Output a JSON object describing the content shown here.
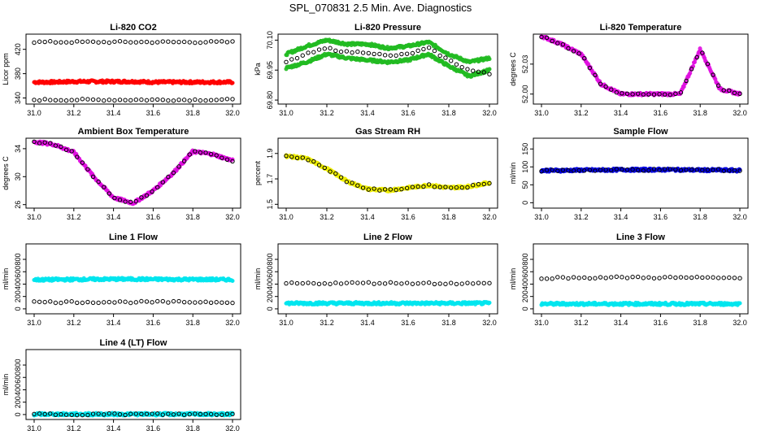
{
  "figure_title": "SPL_070831  2.5 Min. Ave. Diagnostics",
  "colors": {
    "red": "#ff0000",
    "green": "#22bb22",
    "magenta": "#e010e0",
    "yellow": "#eeee00",
    "blue": "#0000dd",
    "cyan": "#00e5ee",
    "black": "#000000"
  },
  "chart_data": [
    {
      "type": "scatter",
      "title": "Li-820 CO2",
      "ylabel": "Licor ppm",
      "xlim": [
        31.0,
        32.0
      ],
      "ylim": [
        330,
        445
      ],
      "xticks": [
        "31.0",
        "31.2",
        "31.4",
        "31.6",
        "31.8",
        "32.0"
      ],
      "yticks": [
        340,
        380,
        420
      ],
      "series": [
        {
          "name": "co2_avg",
          "color": "red",
          "style": "dense",
          "y": [
            366,
            366,
            367,
            367,
            367,
            367,
            366,
            366,
            366,
            366,
            366
          ]
        },
        {
          "name": "co2_max",
          "color": "black",
          "style": "open",
          "y": [
            432,
            432,
            432,
            432,
            432,
            432,
            432,
            432,
            432,
            432,
            432
          ]
        },
        {
          "name": "co2_min",
          "color": "black",
          "style": "open",
          "y": [
            337,
            337,
            337,
            337,
            337,
            337,
            337,
            337,
            337,
            337,
            337
          ]
        }
      ]
    },
    {
      "type": "scatter",
      "title": "Li-820 Pressure",
      "ylabel": "kPa",
      "xlim": [
        31.0,
        32.0
      ],
      "ylim": [
        69.78,
        70.13
      ],
      "xticks": [
        "31.0",
        "31.2",
        "31.4",
        "31.6",
        "31.8",
        "32.0"
      ],
      "yticks": [
        "69.80",
        "69.95",
        "70.10"
      ],
      "series": [
        {
          "name": "p_high",
          "color": "green",
          "style": "dense",
          "y": [
            70.03,
            70.07,
            70.1,
            70.08,
            70.08,
            70.06,
            70.07,
            70.09,
            70.03,
            69.99,
            70.01
          ]
        },
        {
          "name": "p_low",
          "color": "green",
          "style": "dense",
          "y": [
            69.96,
            69.99,
            70.03,
            70.01,
            70.0,
            69.99,
            70.0,
            70.03,
            69.97,
            69.92,
            69.95
          ]
        },
        {
          "name": "p_avg",
          "color": "black",
          "style": "open",
          "y": [
            69.99,
            70.03,
            70.06,
            70.04,
            70.04,
            70.02,
            70.03,
            70.06,
            70.0,
            69.95,
            69.93
          ]
        }
      ]
    },
    {
      "type": "scatter",
      "title": "Li-820 Temperature",
      "ylabel": "degrees C",
      "xlim": [
        31.0,
        32.0
      ],
      "ylim": [
        51.99,
        52.06
      ],
      "xticks": [
        "31.0",
        "31.2",
        "31.4",
        "31.6",
        "31.8",
        "32.0"
      ],
      "yticks": [
        "52.00",
        "52.03"
      ],
      "series": [
        {
          "name": "temp",
          "color": "magenta",
          "style": "dense",
          "y": [
            52.058,
            52.05,
            52.04,
            52.01,
            52.0,
            52.0,
            52.0,
            52.0,
            52.045,
            52.005,
            52.0
          ]
        },
        {
          "name": "temp_avg",
          "color": "black",
          "style": "open",
          "y": [
            52.058,
            52.05,
            52.04,
            52.01,
            52.0,
            52.0,
            52.0,
            52.0,
            52.045,
            52.005,
            52.0
          ]
        }
      ]
    },
    {
      "type": "scatter",
      "title": "Ambient Box Temperature",
      "ylabel": "degrees C",
      "xlim": [
        31.0,
        32.0
      ],
      "ylim": [
        25.5,
        35.5
      ],
      "xticks": [
        "31.0",
        "31.2",
        "31.4",
        "31.6",
        "31.8",
        "32.0"
      ],
      "yticks": [
        26,
        30,
        34
      ],
      "series": [
        {
          "name": "box_temp",
          "color": "magenta",
          "style": "dense",
          "y": [
            35,
            34.6,
            33.5,
            30.0,
            27.0,
            26.2,
            28.0,
            30.5,
            33.6,
            33.2,
            32.3
          ]
        },
        {
          "name": "box_temp_avg",
          "color": "black",
          "style": "open",
          "y": [
            35,
            34.6,
            33.5,
            30.0,
            27.0,
            26.2,
            28.0,
            30.5,
            33.6,
            33.2,
            32.3
          ]
        }
      ]
    },
    {
      "type": "scatter",
      "title": "Gas Stream RH",
      "ylabel": "percent",
      "xlim": [
        31.0,
        32.0
      ],
      "ylim": [
        1.47,
        2.02
      ],
      "xticks": [
        "31.0",
        "31.2",
        "31.4",
        "31.6",
        "31.8",
        "32.0"
      ],
      "yticks": [
        "1.5",
        "1.7",
        "1.9"
      ],
      "series": [
        {
          "name": "rh",
          "color": "yellow",
          "style": "dense",
          "y": [
            1.88,
            1.86,
            1.78,
            1.68,
            1.62,
            1.61,
            1.63,
            1.65,
            1.63,
            1.64,
            1.67
          ]
        },
        {
          "name": "rh_avg",
          "color": "black",
          "style": "open",
          "y": [
            1.88,
            1.86,
            1.78,
            1.68,
            1.62,
            1.61,
            1.63,
            1.65,
            1.63,
            1.64,
            1.67
          ]
        }
      ]
    },
    {
      "type": "scatter",
      "title": "Sample Flow",
      "ylabel": "ml/min",
      "xlim": [
        31.0,
        32.0
      ],
      "ylim": [
        -15,
        180
      ],
      "xticks": [
        "31.0",
        "31.2",
        "31.4",
        "31.6",
        "31.8",
        "32.0"
      ],
      "yticks": [
        0,
        50,
        100,
        150
      ],
      "series": [
        {
          "name": "flow",
          "color": "blue",
          "style": "dense",
          "y": [
            90,
            90,
            91,
            91,
            92,
            92,
            92,
            92,
            91,
            91,
            90
          ]
        },
        {
          "name": "flow_avg",
          "color": "black",
          "style": "open",
          "y": [
            90,
            90,
            91,
            91,
            92,
            92,
            92,
            92,
            91,
            91,
            90
          ]
        }
      ]
    },
    {
      "type": "scatter",
      "title": "Line 1 Flow",
      "ylabel": "ml/min",
      "xlim": [
        31.0,
        32.0
      ],
      "ylim": [
        -80,
        1050
      ],
      "xticks": [
        "31.0",
        "31.2",
        "31.4",
        "31.6",
        "31.8",
        "32.0"
      ],
      "yticks": [
        0,
        200,
        400,
        600,
        800
      ],
      "series": [
        {
          "name": "line_active",
          "color": "cyan",
          "style": "dense",
          "y": [
            470,
            472,
            475,
            478,
            480,
            480,
            478,
            476,
            475,
            474,
            472
          ]
        },
        {
          "name": "line_other",
          "color": "black",
          "style": "open",
          "y": [
            110,
            110,
            110,
            110,
            110,
            110,
            110,
            110,
            110,
            110,
            110
          ]
        }
      ]
    },
    {
      "type": "scatter",
      "title": "Line 2 Flow",
      "ylabel": "ml/min",
      "xlim": [
        31.0,
        32.0
      ],
      "ylim": [
        -80,
        1050
      ],
      "xticks": [
        "31.0",
        "31.2",
        "31.4",
        "31.6",
        "31.8",
        "32.0"
      ],
      "yticks": [
        0,
        200,
        400,
        600,
        800
      ],
      "series": [
        {
          "name": "line_active",
          "color": "cyan",
          "style": "dense",
          "y": [
            90,
            90,
            90,
            90,
            90,
            90,
            90,
            90,
            90,
            90,
            90
          ]
        },
        {
          "name": "line_other",
          "color": "black",
          "style": "open",
          "y": [
            410,
            412,
            414,
            416,
            418,
            418,
            416,
            414,
            412,
            410,
            410
          ]
        }
      ]
    },
    {
      "type": "scatter",
      "title": "Line 3 Flow",
      "ylabel": "ml/min",
      "xlim": [
        31.0,
        32.0
      ],
      "ylim": [
        -80,
        1050
      ],
      "xticks": [
        "31.0",
        "31.2",
        "31.4",
        "31.6",
        "31.8",
        "32.0"
      ],
      "yticks": [
        0,
        200,
        400,
        600,
        800
      ],
      "series": [
        {
          "name": "line_active",
          "color": "cyan",
          "style": "dense",
          "y": [
            80,
            80,
            80,
            80,
            80,
            80,
            80,
            80,
            80,
            80,
            80
          ]
        },
        {
          "name": "line_other",
          "color": "black",
          "style": "open",
          "y": [
            500,
            502,
            504,
            506,
            508,
            508,
            506,
            504,
            502,
            500,
            500
          ]
        }
      ]
    },
    {
      "type": "scatter",
      "title": "Line 4 (LT) Flow",
      "ylabel": "ml/min",
      "xlim": [
        31.0,
        32.0
      ],
      "ylim": [
        -80,
        1050
      ],
      "xticks": [
        "31.0",
        "31.2",
        "31.4",
        "31.6",
        "31.8",
        "32.0"
      ],
      "yticks": [
        0,
        200,
        400,
        600,
        800
      ],
      "series": [
        {
          "name": "line_active",
          "color": "cyan",
          "style": "dense",
          "y": [
            5,
            5,
            5,
            5,
            5,
            5,
            5,
            5,
            5,
            5,
            5
          ]
        },
        {
          "name": "line_other",
          "color": "black",
          "style": "open",
          "y": [
            5,
            5,
            5,
            5,
            5,
            5,
            5,
            5,
            5,
            5,
            5
          ]
        }
      ]
    }
  ]
}
